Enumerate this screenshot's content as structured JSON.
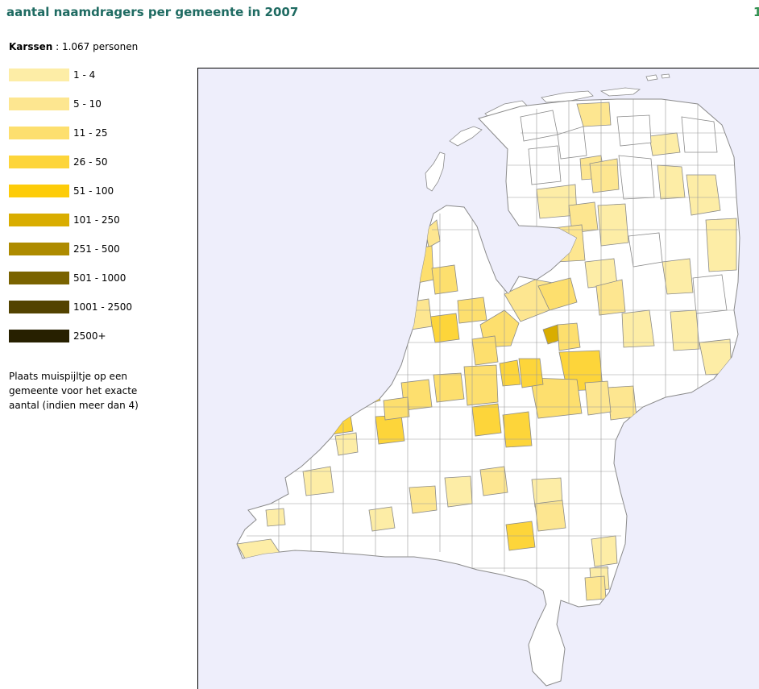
{
  "header": {
    "title": "aantal naamdragers per gemeente in 2007",
    "corner_mark": "1"
  },
  "summary": {
    "name": "Karssen",
    "separator": " : ",
    "count": "1.067 personen"
  },
  "legend": {
    "items": [
      {
        "label": "1 - 4",
        "color": "#fdeda6"
      },
      {
        "label": "5 - 10",
        "color": "#fde690"
      },
      {
        "label": "11 - 25",
        "color": "#fddf6e"
      },
      {
        "label": "26 - 50",
        "color": "#fdd53a"
      },
      {
        "label": "51 - 100",
        "color": "#fdcc09"
      },
      {
        "label": "101 - 250",
        "color": "#d9ad00"
      },
      {
        "label": "251 - 500",
        "color": "#ae8b00"
      },
      {
        "label": "501 - 1000",
        "color": "#7a6300"
      },
      {
        "label": "1001 - 2500",
        "color": "#534300"
      },
      {
        "label": "2500+",
        "color": "#272000"
      }
    ]
  },
  "instructions": "Plaats muispijltje op een gemeente voor het exacte aantal (indien meer dan 4)",
  "map": {
    "background_color": "#eeeefb",
    "land_color": "#ffffff",
    "border_color": "#8a8a8a",
    "highlighted_municipalities": [
      {
        "class": "101 - 250",
        "color": "#d9ad00"
      },
      {
        "class": "51 - 100",
        "color": "#fdcc09"
      },
      {
        "class": "26 - 50",
        "color": "#fdd53a"
      },
      {
        "class": "11 - 25",
        "color": "#fddf6e"
      },
      {
        "class": "5 - 10",
        "color": "#fde690"
      },
      {
        "class": "1 - 4",
        "color": "#fdeda6"
      }
    ]
  }
}
